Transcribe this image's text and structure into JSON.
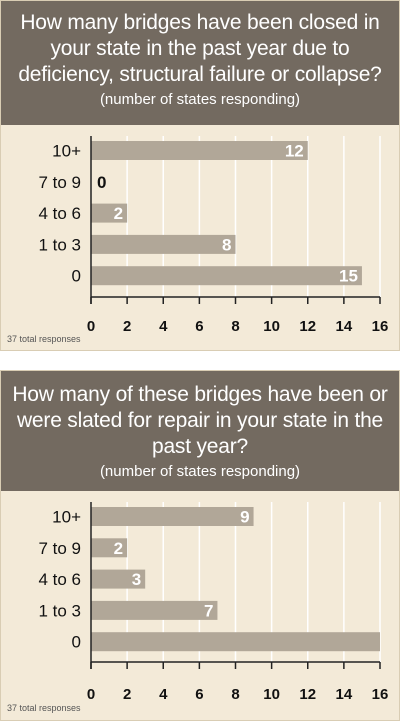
{
  "chart_data": [
    {
      "type": "bar",
      "orientation": "horizontal",
      "title": "How many bridges have been closed in your state in the past year due to deficiency, structural failure or collapse?",
      "subtitle": "(number of states responding)",
      "categories": [
        "10+",
        "7 to 9",
        "4 to 6",
        "1 to 3",
        "0"
      ],
      "values": [
        12,
        0,
        2,
        8,
        15
      ],
      "data_labels": [
        "12",
        "0",
        "2",
        "8",
        "15"
      ],
      "xlim": [
        0,
        16
      ],
      "xticks": [
        0,
        2,
        4,
        6,
        8,
        10,
        12,
        14,
        16
      ],
      "grid": true,
      "footnote": "37 total responses"
    },
    {
      "type": "bar",
      "orientation": "horizontal",
      "title": "How many of these bridges have been or were slated for repair in your state in the past year?",
      "subtitle": "(number of states responding)",
      "categories": [
        "10+",
        "7 to 9",
        "4 to 6",
        "1 to 3",
        "0"
      ],
      "values": [
        9,
        2,
        3,
        7,
        16
      ],
      "data_labels": [
        "9",
        "2",
        "3",
        "7",
        ""
      ],
      "xlim": [
        0,
        16
      ],
      "xticks": [
        0,
        2,
        4,
        6,
        8,
        10,
        12,
        14,
        16
      ],
      "grid": true,
      "footnote": "37 total responses"
    }
  ],
  "colors": {
    "header": "#736a60",
    "panel": "#f3ead8",
    "bar": "#b1a798",
    "grid": "#ffffff",
    "axis": "#222222"
  }
}
